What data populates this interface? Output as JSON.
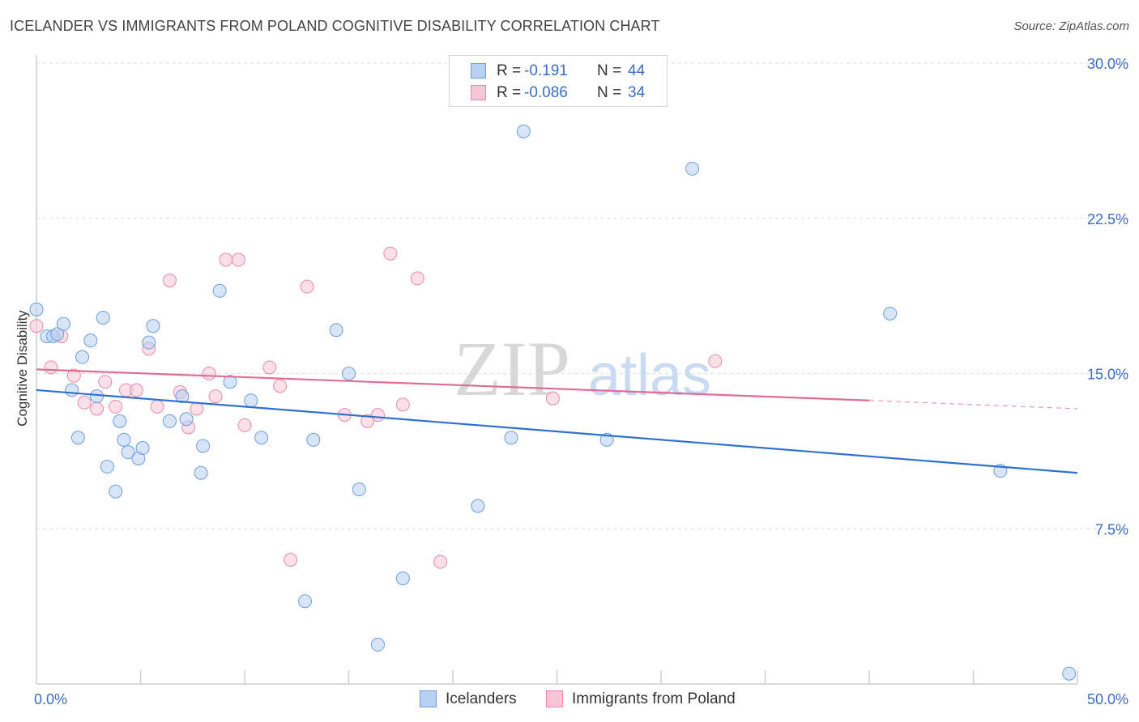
{
  "title": "ICELANDER VS IMMIGRANTS FROM POLAND COGNITIVE DISABILITY CORRELATION CHART",
  "source": "Source: ZipAtlas.com",
  "watermark": {
    "zip": "ZIP",
    "atlas": "atlas"
  },
  "legend": {
    "rows": [
      {
        "r_label": "R =",
        "r_value": "-0.191",
        "n_label": "N =",
        "n_value": "44"
      },
      {
        "r_label": "R =",
        "r_value": "-0.086",
        "n_label": "N =",
        "n_value": "34"
      }
    ]
  },
  "bottom_legend": [
    "Icelanders",
    "Immigrants from Poland"
  ],
  "colors": {
    "blue_fill": "#b8d0f2",
    "blue_stroke": "#6c9edb",
    "blue_line": "#2e72cf",
    "pink_fill": "#f7c6d6",
    "pink_stroke": "#e98aaa",
    "pink_line": "#e06c97",
    "grid": "#dddddd",
    "tick_text": "#3a6fc4"
  },
  "chart_data": {
    "type": "scatter",
    "title": "ICELANDER VS IMMIGRANTS FROM POLAND COGNITIVE DISABILITY CORRELATION CHART",
    "xlabel": "",
    "ylabel": "Cognitive Disability",
    "xlim": [
      0,
      50
    ],
    "ylim": [
      0,
      30
    ],
    "x_tick_labels": [
      {
        "value": 0,
        "label": "0.0%"
      },
      {
        "value": 50,
        "label": "50.0%"
      }
    ],
    "y_tick_labels": [
      {
        "value": 7.5,
        "label": "7.5%"
      },
      {
        "value": 15,
        "label": "15.0%"
      },
      {
        "value": 22.5,
        "label": "22.5%"
      },
      {
        "value": 30,
        "label": "30.0%"
      }
    ],
    "x_minor_ticks": [
      5,
      10,
      15,
      20,
      25,
      30,
      35,
      40,
      45,
      50
    ],
    "series": [
      {
        "name": "Icelanders",
        "r": -0.191,
        "n": 44,
        "trend": {
          "x": [
            0,
            50
          ],
          "y": [
            14.2,
            10.2
          ]
        },
        "points": [
          [
            0.0,
            18.1
          ],
          [
            0.5,
            16.8
          ],
          [
            0.8,
            16.8
          ],
          [
            1.0,
            16.9
          ],
          [
            1.3,
            17.4
          ],
          [
            1.7,
            14.2
          ],
          [
            2.0,
            11.9
          ],
          [
            2.2,
            15.8
          ],
          [
            2.6,
            16.6
          ],
          [
            2.9,
            13.9
          ],
          [
            3.2,
            17.7
          ],
          [
            3.4,
            10.5
          ],
          [
            3.8,
            9.3
          ],
          [
            4.0,
            12.7
          ],
          [
            4.2,
            11.8
          ],
          [
            4.4,
            11.2
          ],
          [
            4.9,
            10.9
          ],
          [
            5.1,
            11.4
          ],
          [
            5.4,
            16.5
          ],
          [
            5.6,
            17.3
          ],
          [
            6.4,
            12.7
          ],
          [
            7.0,
            13.9
          ],
          [
            7.2,
            12.8
          ],
          [
            7.9,
            10.2
          ],
          [
            8.0,
            11.5
          ],
          [
            8.8,
            19.0
          ],
          [
            9.3,
            14.6
          ],
          [
            10.3,
            13.7
          ],
          [
            10.8,
            11.9
          ],
          [
            12.9,
            4.0
          ],
          [
            13.3,
            11.8
          ],
          [
            14.4,
            17.1
          ],
          [
            15.0,
            15.0
          ],
          [
            15.5,
            9.4
          ],
          [
            16.4,
            1.9
          ],
          [
            17.6,
            5.1
          ],
          [
            21.2,
            8.6
          ],
          [
            22.8,
            11.9
          ],
          [
            23.4,
            26.7
          ],
          [
            27.4,
            11.8
          ],
          [
            31.5,
            24.9
          ],
          [
            41.0,
            17.9
          ],
          [
            46.3,
            10.3
          ],
          [
            49.6,
            0.5
          ]
        ]
      },
      {
        "name": "Immigrants from Poland",
        "r": -0.086,
        "n": 34,
        "trend": {
          "x": [
            0,
            40
          ],
          "y": [
            15.2,
            13.7
          ]
        },
        "trend_dashed": {
          "x": [
            40,
            50
          ],
          "y": [
            13.7,
            13.3
          ]
        },
        "points": [
          [
            0.0,
            17.3
          ],
          [
            0.7,
            15.3
          ],
          [
            1.2,
            16.8
          ],
          [
            1.8,
            14.9
          ],
          [
            2.3,
            13.6
          ],
          [
            2.9,
            13.3
          ],
          [
            3.3,
            14.6
          ],
          [
            3.8,
            13.4
          ],
          [
            4.3,
            14.2
          ],
          [
            4.8,
            14.2
          ],
          [
            5.4,
            16.2
          ],
          [
            5.8,
            13.4
          ],
          [
            6.4,
            19.5
          ],
          [
            6.9,
            14.1
          ],
          [
            7.3,
            12.4
          ],
          [
            7.7,
            13.3
          ],
          [
            8.3,
            15.0
          ],
          [
            8.6,
            13.9
          ],
          [
            9.1,
            20.5
          ],
          [
            9.7,
            20.5
          ],
          [
            10.0,
            12.5
          ],
          [
            11.2,
            15.3
          ],
          [
            11.7,
            14.4
          ],
          [
            12.2,
            6.0
          ],
          [
            13.0,
            19.2
          ],
          [
            14.8,
            13.0
          ],
          [
            15.9,
            12.7
          ],
          [
            16.4,
            13.0
          ],
          [
            17.0,
            20.8
          ],
          [
            17.6,
            13.5
          ],
          [
            18.3,
            19.6
          ],
          [
            19.4,
            5.9
          ],
          [
            24.8,
            13.8
          ],
          [
            32.6,
            15.6
          ]
        ]
      }
    ]
  }
}
